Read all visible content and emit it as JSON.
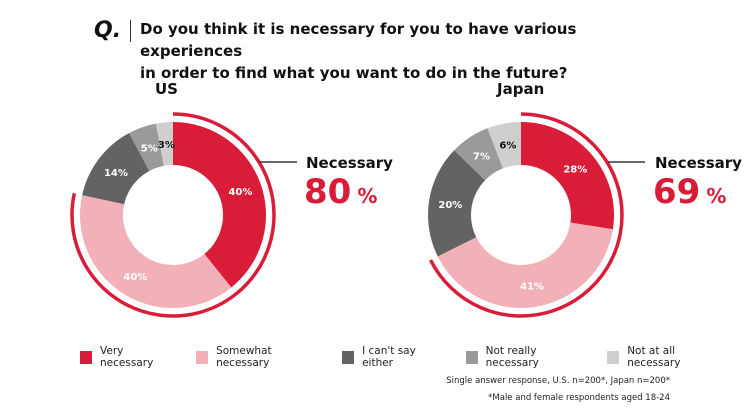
{
  "question_mark": "Q.",
  "title_line1": "Do you think it is necessary for you to have various experiences",
  "title_line2": "in order to find what you want to do in the future?",
  "necessary_label": "Necessary",
  "percent_sign": "%",
  "chart_data": [
    {
      "type": "pie",
      "title": "US",
      "categories": [
        "Very necessary",
        "Somewhat necessary",
        "I can't say either",
        "Not really necessary",
        "Not at all necessary"
      ],
      "values": [
        40,
        40,
        14,
        5,
        3
      ],
      "labels": [
        "40%",
        "40%",
        "14%",
        "5%",
        "3%"
      ],
      "necessary_total": "80"
    },
    {
      "type": "pie",
      "title": "Japan",
      "categories": [
        "Very necessary",
        "Somewhat necessary",
        "I can't say either",
        "Not really necessary",
        "Not at all necessary"
      ],
      "values": [
        28,
        41,
        20,
        7,
        6
      ],
      "labels": [
        "28%",
        "41%",
        "20%",
        "7%",
        "6%"
      ],
      "necessary_total": "69"
    }
  ],
  "legend": [
    {
      "label": "Very necessary",
      "color": "#d91c38"
    },
    {
      "label": "Somewhat necessary",
      "color": "#f2b0b8"
    },
    {
      "label": "I can't say either",
      "color": "#636363"
    },
    {
      "label": "Not really necessary",
      "color": "#9a9a9a"
    },
    {
      "label": "Not at all necessary",
      "color": "#cfcfcf"
    }
  ],
  "notes": [
    "Single answer response, U.S. n=200*, Japan n=200*",
    "*Male and female respondents aged 18-24"
  ]
}
